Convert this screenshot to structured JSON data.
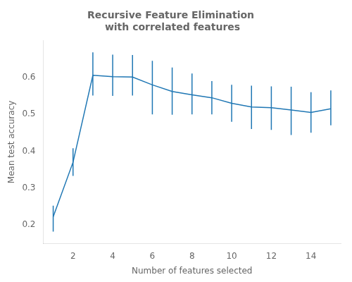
{
  "chart_data": {
    "type": "line",
    "title": "Recursive Feature Elimination \nwith correlated features",
    "xlabel": "Number of features selected",
    "ylabel": "Mean test accuracy",
    "x": [
      1,
      2,
      3,
      4,
      5,
      6,
      7,
      8,
      9,
      10,
      11,
      12,
      13,
      14,
      15
    ],
    "values": [
      0.222,
      0.37,
      0.606,
      0.602,
      0.601,
      0.58,
      0.562,
      0.553,
      0.545,
      0.53,
      0.52,
      0.518,
      0.512,
      0.505,
      0.515
    ],
    "yerr_low": [
      0.04,
      0.037,
      0.055,
      0.052,
      0.05,
      0.08,
      0.063,
      0.053,
      0.045,
      0.05,
      0.06,
      0.06,
      0.068,
      0.055,
      0.045
    ],
    "yerr_high": [
      0.03,
      0.038,
      0.062,
      0.06,
      0.06,
      0.065,
      0.065,
      0.058,
      0.045,
      0.05,
      0.058,
      0.058,
      0.063,
      0.055,
      0.05
    ],
    "color": "#1f77b4",
    "xlim": [
      0.5,
      15.5
    ],
    "ylim": [
      0.15,
      0.7
    ],
    "xticks": [
      2,
      4,
      6,
      8,
      10,
      12,
      14
    ],
    "yticks": [
      0.2,
      0.3,
      0.4,
      0.5,
      0.6
    ],
    "grid": false
  }
}
